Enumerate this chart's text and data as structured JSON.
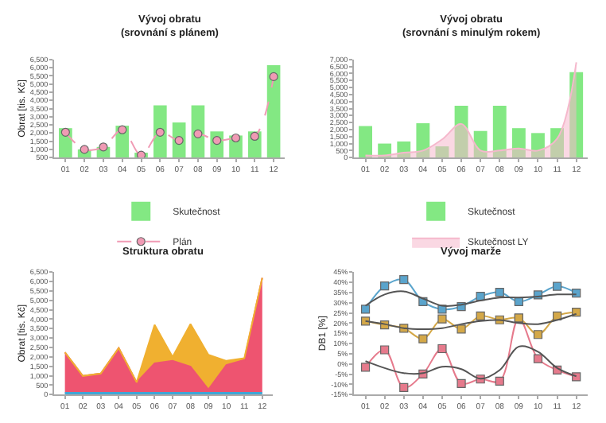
{
  "chart_data": [
    {
      "type": "bar",
      "title": "Vývoj obratu",
      "subtitle": "(srovnání s plánem)",
      "ylabel": "Obrat [tis. Kč]",
      "legend": "bottom",
      "categories": [
        "01",
        "02",
        "03",
        "04",
        "05",
        "06",
        "07",
        "08",
        "09",
        "10",
        "11",
        "12"
      ],
      "ylim": [
        500,
        6500
      ],
      "yticks": [
        {
          "value": 500,
          "label": "500"
        },
        {
          "value": 1000,
          "label": "1,000"
        },
        {
          "value": 1500,
          "label": "1,500"
        },
        {
          "value": 2000,
          "label": "2,000"
        },
        {
          "value": 2500,
          "label": "2,500"
        },
        {
          "value": 3000,
          "label": "3,000"
        },
        {
          "value": 3500,
          "label": "3,500"
        },
        {
          "value": 4000,
          "label": "4,000"
        },
        {
          "value": 4500,
          "label": "4,500"
        },
        {
          "value": 5000,
          "label": "5,000"
        },
        {
          "value": 5500,
          "label": "5,500"
        },
        {
          "value": 6000,
          "label": "6,000"
        },
        {
          "value": 6500,
          "label": "6,500"
        }
      ],
      "series": [
        {
          "name": "Skutečnost",
          "type": "bar",
          "color": "#6ee46e",
          "values": [
            2300,
            1000,
            1150,
            2450,
            800,
            3700,
            2650,
            3700,
            2100,
            1850,
            2100,
            6150
          ]
        },
        {
          "name": "Plán",
          "type": "line",
          "color": "#f09ab4",
          "line_style": "dashed",
          "marker": "circle",
          "values": [
            2050,
            1000,
            1150,
            2200,
            650,
            2050,
            1550,
            1950,
            1550,
            1700,
            1800,
            5450
          ]
        }
      ]
    },
    {
      "type": "bar",
      "title": "Vývoj obratu",
      "subtitle": "(srovnání s minulým rokem)",
      "legend": "bottom",
      "categories": [
        "01",
        "02",
        "03",
        "04",
        "05",
        "06",
        "07",
        "08",
        "09",
        "10",
        "11",
        "12"
      ],
      "ylim": [
        0,
        7000
      ],
      "yticks": [
        0,
        {
          "value": 500,
          "label": "500"
        },
        {
          "value": 1000,
          "label": "1,000"
        },
        {
          "value": 1500,
          "label": "1,500"
        },
        {
          "value": 2000,
          "label": "2,000"
        },
        {
          "value": 2500,
          "label": "2,500"
        },
        {
          "value": 3000,
          "label": "3,000"
        },
        {
          "value": 3500,
          "label": "3,500"
        },
        {
          "value": 4000,
          "label": "4,000"
        },
        {
          "value": 4500,
          "label": "4,500"
        },
        {
          "value": 5000,
          "label": "5,000"
        },
        {
          "value": 5500,
          "label": "5,500"
        },
        {
          "value": 6000,
          "label": "6,000"
        },
        {
          "value": 6500,
          "label": "6,500"
        },
        {
          "value": 7000,
          "label": "7,000"
        }
      ],
      "series": [
        {
          "name": "Skutečnost",
          "type": "bar",
          "color": "#6ee46e",
          "values": [
            2250,
            1000,
            1150,
            2450,
            800,
            3700,
            1900,
            3700,
            2100,
            1750,
            2100,
            6100
          ]
        },
        {
          "name": "Skutečnost LY",
          "type": "area",
          "color": "#f5b8cc",
          "values": [
            150,
            150,
            350,
            500,
            1300,
            2400,
            500,
            500,
            650,
            500,
            1350,
            6800
          ]
        }
      ]
    },
    {
      "type": "area",
      "title": "Struktura obratu",
      "ylabel": "Obrat [tis. Kč]",
      "stacked": true,
      "categories": [
        "01",
        "02",
        "03",
        "04",
        "05",
        "06",
        "07",
        "08",
        "09",
        "10",
        "11",
        "12"
      ],
      "ylim": [
        0,
        6500
      ],
      "yticks": [
        0,
        {
          "value": 500,
          "label": "500"
        },
        {
          "value": 1000,
          "label": "1,000"
        },
        {
          "value": 1500,
          "label": "1,500"
        },
        {
          "value": 2000,
          "label": "2,000"
        },
        {
          "value": 2500,
          "label": "2,500"
        },
        {
          "value": 3000,
          "label": "3,000"
        },
        {
          "value": 3500,
          "label": "3,500"
        },
        {
          "value": 4000,
          "label": "4,000"
        },
        {
          "value": 4500,
          "label": "4,500"
        },
        {
          "value": 5000,
          "label": "5,000"
        },
        {
          "value": 5500,
          "label": "5,500"
        },
        {
          "value": 6000,
          "label": "6,000"
        },
        {
          "value": 6500,
          "label": "6,500"
        }
      ],
      "series": [
        {
          "color": "#3fa6d6",
          "values": [
            100,
            100,
            100,
            100,
            100,
            100,
            100,
            100,
            100,
            100,
            100,
            100
          ]
        },
        {
          "color": "#ee5470",
          "values": [
            2140,
            890,
            1020,
            2370,
            550,
            1560,
            1690,
            1380,
            170,
            1470,
            1740,
            6090
          ]
        },
        {
          "color": "#f0b030",
          "values": [
            0,
            0,
            0,
            0,
            0,
            2040,
            210,
            2260,
            1840,
            220,
            90,
            0
          ]
        }
      ]
    },
    {
      "type": "line",
      "title": "Vývoj marže",
      "ylabel": "DB1 [%]",
      "categories": [
        "01",
        "02",
        "03",
        "04",
        "05",
        "06",
        "07",
        "08",
        "09",
        "10",
        "11",
        "12"
      ],
      "ylim": [
        -15,
        45
      ],
      "yticks": [
        {
          "value": -15,
          "label": "-15%"
        },
        {
          "value": -10,
          "label": "-10%"
        },
        {
          "value": -5,
          "label": "-5%"
        },
        {
          "value": 0,
          "label": "0%"
        },
        {
          "value": 5,
          "label": "5%"
        },
        {
          "value": 10,
          "label": "10%"
        },
        {
          "value": 15,
          "label": "15%"
        },
        {
          "value": 20,
          "label": "20%"
        },
        {
          "value": 25,
          "label": "25%"
        },
        {
          "value": 30,
          "label": "30%"
        },
        {
          "value": 35,
          "label": "35%"
        },
        {
          "value": 40,
          "label": "40%"
        },
        {
          "value": 45,
          "label": "45%"
        }
      ],
      "series": [
        {
          "color": "#5aa4cc",
          "marker": "square",
          "values": [
            26.8,
            38.2,
            41.3,
            30.5,
            26.8,
            28.1,
            33.1,
            35.1,
            30.5,
            33.8,
            38.0,
            34.7
          ]
        },
        {
          "color": "#e67a8c",
          "marker": "square",
          "values": [
            -1.6,
            6.9,
            -11.5,
            -4.9,
            7.5,
            -9.6,
            -7.4,
            -8.4,
            22.3,
            2.6,
            -3.0,
            -6.3
          ]
        },
        {
          "color": "#d4a848",
          "marker": "square",
          "values": [
            21.0,
            19.1,
            17.5,
            12.3,
            22.0,
            17.1,
            23.5,
            21.6,
            22.5,
            14.4,
            23.5,
            25.3
          ]
        },
        {
          "color": "#555555",
          "marker": "none",
          "values": [
            28.5,
            34,
            35.5,
            32,
            28.5,
            29,
            31,
            32.5,
            32.5,
            33,
            34,
            34
          ]
        },
        {
          "color": "#555555",
          "marker": "none",
          "values": [
            1.4,
            -2,
            -4.5,
            -4.5,
            -1.4,
            -2.5,
            -7.2,
            -3,
            8.5,
            6,
            -2,
            -6
          ]
        },
        {
          "color": "#555555",
          "marker": "none",
          "values": [
            21,
            19.5,
            17.5,
            17,
            17.5,
            19.5,
            21,
            21.5,
            20,
            19.5,
            21.5,
            24.5
          ]
        }
      ]
    }
  ]
}
